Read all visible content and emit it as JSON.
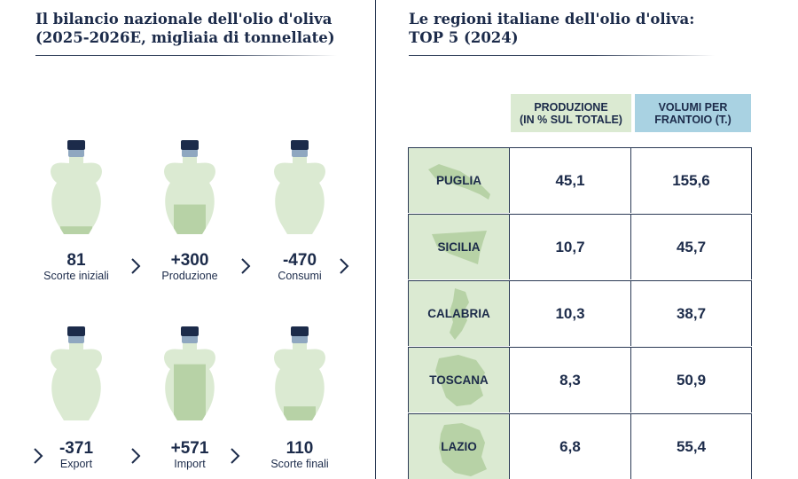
{
  "left_panel": {
    "title_line1": "Il bilancio nazionale dell'olio d'oliva",
    "title_line2": "(2025-2026E, migliaia di tonnellate)",
    "jar_colors": {
      "body": "#dbead2",
      "fill": "#b7d2a6",
      "cap": "#1c2b4a",
      "neck": "#8fa7c0"
    },
    "items": [
      {
        "value": "81",
        "label": "Scorte iniziali",
        "fill_level": 0.1
      },
      {
        "value": "+300",
        "label": "Produzione",
        "fill_level": 0.38
      },
      {
        "value": "-470",
        "label": "Consumi",
        "fill_level": 0
      },
      {
        "value": "-371",
        "label": "Export",
        "fill_level": 0
      },
      {
        "value": "+571",
        "label": "Import",
        "fill_level": 0.72
      },
      {
        "value": "110",
        "label": "Scorte finali",
        "fill_level": 0.18
      }
    ]
  },
  "right_panel": {
    "title_line1": "Le regioni italiane dell'olio d'oliva:",
    "title_line2": "TOP 5 (2024)",
    "header_colors": {
      "produzione": "#dbead2",
      "volumi": "#a9d2e2"
    },
    "headers": {
      "produzione_line1": "PRODUZIONE",
      "produzione_line2": "(IN % SUL TOTALE)",
      "volumi_line1": "VOLUMI PER",
      "volumi_line2": "FRANTOIO (T.)"
    },
    "rows": [
      {
        "region": "PUGLIA",
        "produzione": "45,1",
        "volumi": "155,6"
      },
      {
        "region": "SICILIA",
        "produzione": "10,7",
        "volumi": "45,7"
      },
      {
        "region": "CALABRIA",
        "produzione": "10,3",
        "volumi": "38,7"
      },
      {
        "region": "TOSCANA",
        "produzione": "8,3",
        "volumi": "50,9"
      },
      {
        "region": "LAZIO",
        "produzione": "6,8",
        "volumi": "55,4"
      }
    ]
  }
}
